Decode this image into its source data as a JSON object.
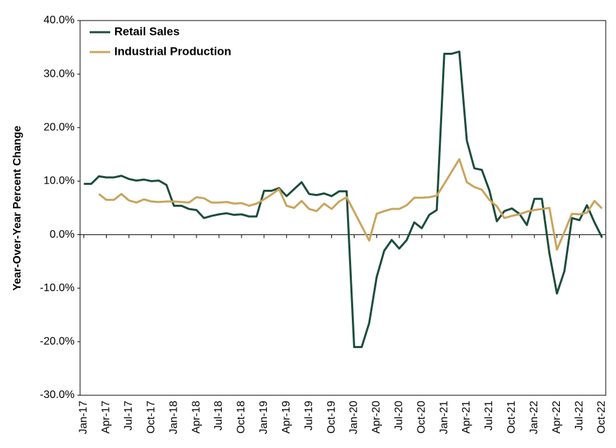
{
  "chart_data": {
    "type": "line",
    "y_label": "Year-Over-Year Percent Change",
    "categories": [
      "Jan-17",
      null,
      null,
      "Apr-17",
      null,
      null,
      "Jul-17",
      null,
      null,
      "Oct-17",
      null,
      null,
      "Jan-18",
      null,
      null,
      "Apr-18",
      null,
      null,
      "Jul-18",
      null,
      null,
      "Oct-18",
      null,
      null,
      "Jan-19",
      null,
      null,
      "Apr-19",
      null,
      null,
      "Jul-19",
      null,
      null,
      "Oct-19",
      null,
      null,
      "Jan-20",
      null,
      null,
      "Apr-20",
      null,
      null,
      "Jul-20",
      null,
      null,
      "Oct-20",
      null,
      null,
      "Jan-21",
      null,
      null,
      "Apr-21",
      null,
      null,
      "Jul-21",
      null,
      null,
      "Oct-21",
      null,
      null,
      "Jan-22",
      null,
      null,
      "Apr-22",
      null,
      null,
      "Jul-22",
      null,
      null,
      "Oct-22"
    ],
    "series": [
      {
        "name": "Retail Sales",
        "color": "#1b4d3a",
        "values": [
          9.5,
          9.5,
          10.9,
          10.7,
          10.7,
          11.0,
          10.4,
          10.1,
          10.3,
          10.0,
          10.1,
          9.3,
          5.4,
          5.4,
          4.8,
          4.6,
          3.1,
          3.5,
          3.8,
          4.0,
          3.7,
          3.8,
          3.4,
          3.4,
          8.2,
          8.2,
          8.7,
          7.2,
          8.5,
          9.8,
          7.6,
          7.4,
          7.7,
          7.2,
          8.1,
          8.1,
          -21.0,
          -21.0,
          -16.5,
          -7.9,
          -3.0,
          -1.0,
          -2.6,
          -1.0,
          2.3,
          1.2,
          3.7,
          4.6,
          33.8,
          33.8,
          34.2,
          17.6,
          12.4,
          12.1,
          8.3,
          2.5,
          4.4,
          4.9,
          3.9,
          1.8,
          6.7,
          6.7,
          -3.5,
          -11.0,
          -6.8,
          3.1,
          2.7,
          5.5,
          2.3,
          -0.5
        ]
      },
      {
        "name": "Industrial Production",
        "color": "#c9a45c",
        "values": [
          null,
          null,
          7.6,
          6.5,
          6.5,
          7.6,
          6.4,
          6.0,
          6.6,
          6.2,
          6.1,
          6.2,
          6.2,
          6.1,
          6.0,
          7.0,
          6.8,
          6.0,
          6.0,
          6.1,
          5.8,
          5.9,
          5.4,
          5.8,
          6.6,
          7.5,
          8.5,
          5.4,
          5.0,
          6.3,
          4.8,
          4.4,
          5.8,
          4.8,
          6.2,
          7.0,
          4.3,
          1.6,
          -1.1,
          3.9,
          4.4,
          4.8,
          4.8,
          5.5,
          6.9,
          6.9,
          7.0,
          7.3,
          9.5,
          11.8,
          14.1,
          9.8,
          8.9,
          8.4,
          6.5,
          5.3,
          3.1,
          3.5,
          3.8,
          4.3,
          4.6,
          4.8,
          5.0,
          -2.8,
          0.5,
          3.9,
          3.8,
          4.1,
          6.3,
          4.9
        ]
      }
    ],
    "ylim": [
      -30,
      40
    ],
    "yticks": [
      {
        "value": -30,
        "label": "-30.0%"
      },
      {
        "value": -20,
        "label": "-20.0%"
      },
      {
        "value": -10,
        "label": "-10.0%"
      },
      {
        "value": 0,
        "label": "0.0%"
      },
      {
        "value": 10,
        "label": "10.0%"
      },
      {
        "value": 20,
        "label": "20.0%"
      },
      {
        "value": 30,
        "label": "30.0%"
      },
      {
        "value": 40,
        "label": "40.0%"
      }
    ],
    "legend": "upper left"
  }
}
